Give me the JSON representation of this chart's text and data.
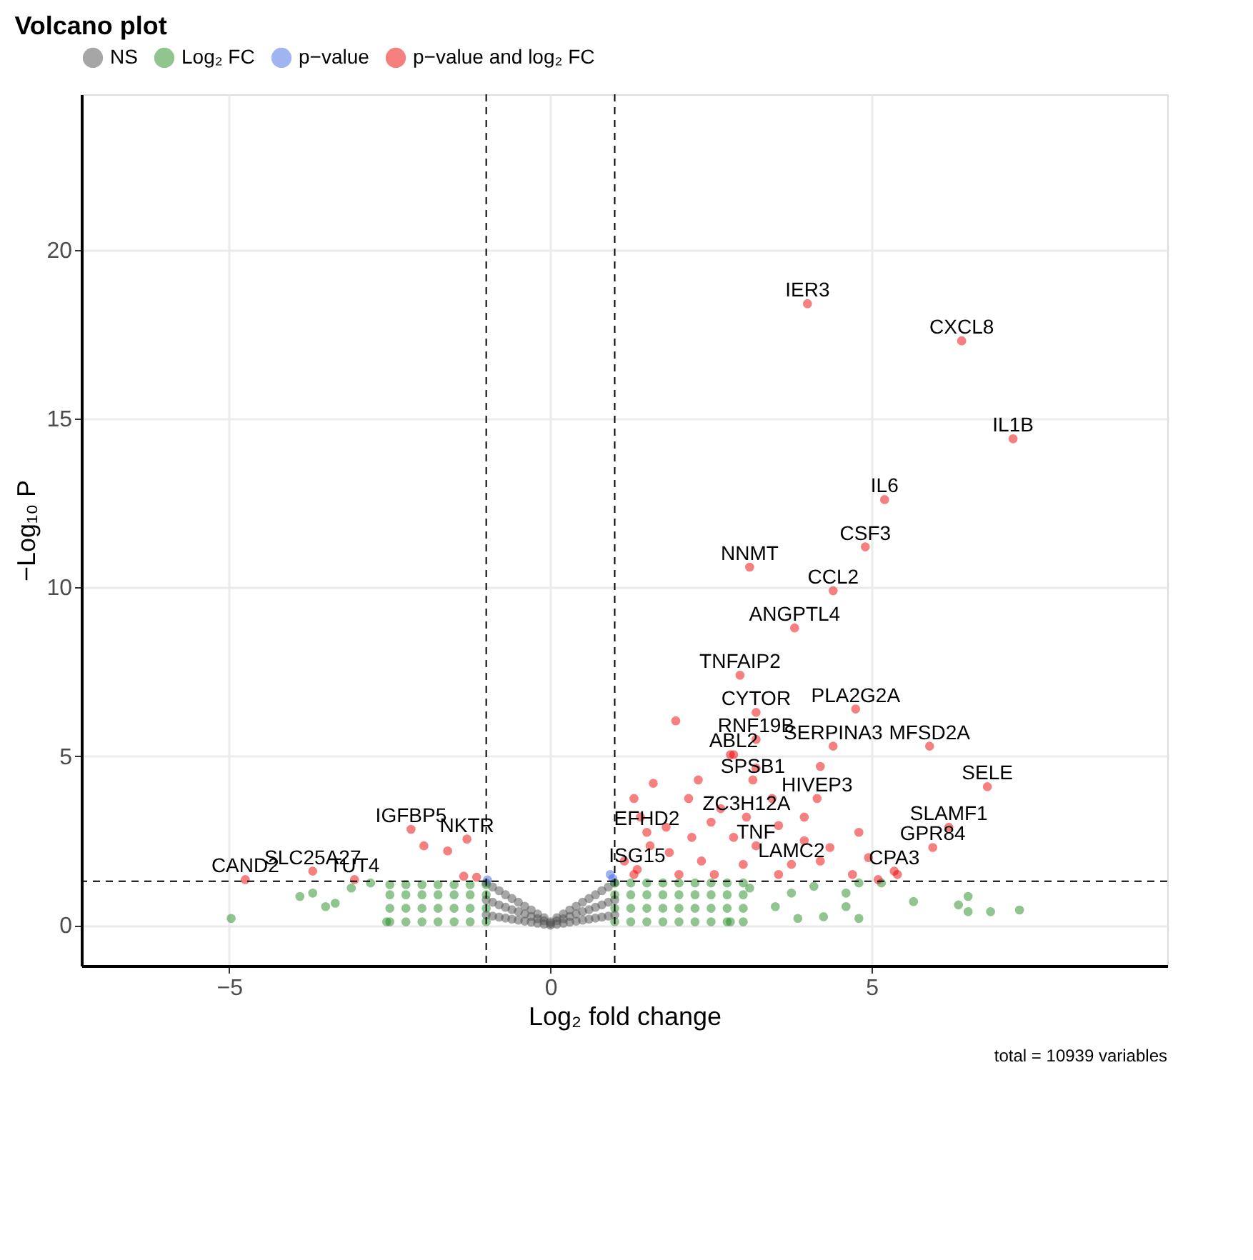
{
  "chart_data": {
    "type": "scatter",
    "title": "Volcano plot",
    "xlabel": "Log₂ fold change",
    "ylabel": "−Log₁₀ P",
    "xlim": [
      -7.3,
      9.6
    ],
    "ylim": [
      -1.2,
      24.6
    ],
    "xticks": [
      -5,
      0,
      5
    ],
    "yticks": [
      0,
      5,
      10,
      15,
      20
    ],
    "grid": true,
    "legend": "top",
    "marker": "circle",
    "series": [
      {
        "name": "NS",
        "color": "#4d4d4d",
        "x": [
          -1.0,
          -0.9,
          -0.8,
          -0.7,
          -0.6,
          -0.5,
          -0.4,
          -0.3,
          -0.2,
          -0.1,
          0.0,
          0.1,
          0.2,
          0.3,
          0.4,
          0.5,
          0.6,
          0.7,
          0.8,
          0.9,
          1.0,
          -1.0,
          -0.9,
          -0.8,
          -0.7,
          -0.6,
          -0.5,
          -0.4,
          -0.3,
          -0.2,
          -0.1,
          0.0,
          0.1,
          0.2,
          0.3,
          0.4,
          0.5,
          0.6,
          0.7,
          0.8,
          0.9,
          1.0,
          -1.0,
          -0.9,
          -0.8,
          -0.7,
          -0.6,
          -0.5,
          -0.4,
          -0.3,
          -0.2,
          -0.1,
          0.0,
          0.1,
          0.2,
          0.3,
          0.4,
          0.5,
          0.6,
          0.7,
          0.8,
          0.9,
          1.0
        ],
        "values": [
          1.25,
          1.13,
          1.02,
          0.9,
          0.79,
          0.68,
          0.56,
          0.45,
          0.33,
          0.22,
          0.1,
          0.22,
          0.33,
          0.45,
          0.56,
          0.68,
          0.79,
          0.9,
          1.02,
          1.13,
          1.25,
          0.75,
          0.68,
          0.6,
          0.53,
          0.46,
          0.4,
          0.33,
          0.26,
          0.19,
          0.13,
          0.05,
          0.13,
          0.19,
          0.26,
          0.33,
          0.4,
          0.46,
          0.53,
          0.6,
          0.68,
          0.75,
          0.3,
          0.27,
          0.24,
          0.21,
          0.18,
          0.15,
          0.12,
          0.09,
          0.06,
          0.03,
          0.0,
          0.03,
          0.06,
          0.09,
          0.12,
          0.15,
          0.18,
          0.21,
          0.24,
          0.27,
          0.3
        ]
      },
      {
        "name": "Log₂ FC",
        "color": "#228b22",
        "x": [
          1.0,
          1.25,
          1.5,
          1.75,
          2.0,
          2.25,
          2.5,
          2.75,
          3.0,
          1.0,
          1.25,
          1.5,
          1.75,
          2.0,
          2.25,
          2.5,
          2.75,
          3.0,
          1.0,
          1.25,
          1.5,
          1.75,
          2.0,
          2.25,
          2.5,
          2.75,
          3.0,
          1.0,
          1.25,
          1.5,
          1.75,
          2.0,
          2.25,
          2.5,
          2.75,
          3.0,
          4.1,
          4.6,
          4.6,
          4.25,
          4.8,
          5.65,
          6.35,
          6.5,
          6.5,
          6.85,
          7.3,
          5.15,
          4.8,
          2.8,
          3.1,
          3.5,
          3.75,
          3.85,
          -4.97,
          -3.9,
          -3.7,
          -3.5,
          -3.35,
          -3.1,
          -2.8,
          -2.55,
          -2.5,
          -2.25,
          -2.0,
          -1.75,
          -1.5,
          -1.25,
          -1.0,
          -2.5,
          -2.25,
          -2.0,
          -1.75,
          -1.5,
          -1.25,
          -1.0,
          -2.5,
          -2.25,
          -2.0,
          -1.75,
          -1.5,
          -1.25,
          -1.0,
          -2.5,
          -2.25,
          -2.0,
          -1.75,
          -1.5,
          -1.25,
          -1.0
        ],
        "values": [
          0.1,
          0.1,
          0.1,
          0.1,
          0.1,
          0.1,
          0.1,
          0.1,
          0.1,
          0.5,
          0.5,
          0.5,
          0.5,
          0.5,
          0.5,
          0.5,
          0.5,
          0.5,
          0.9,
          0.9,
          0.9,
          0.9,
          0.9,
          0.9,
          0.9,
          0.9,
          0.9,
          1.25,
          1.25,
          1.25,
          1.25,
          1.25,
          1.25,
          1.25,
          1.25,
          1.25,
          1.15,
          0.95,
          0.55,
          0.25,
          0.2,
          0.7,
          0.6,
          0.85,
          0.4,
          0.4,
          0.45,
          1.25,
          1.25,
          0.1,
          1.1,
          0.55,
          0.95,
          0.2,
          0.2,
          0.85,
          0.95,
          0.55,
          0.65,
          1.1,
          1.25,
          0.1,
          0.1,
          0.1,
          0.1,
          0.1,
          0.1,
          0.1,
          0.1,
          0.5,
          0.5,
          0.5,
          0.5,
          0.5,
          0.5,
          0.5,
          0.9,
          0.9,
          0.9,
          0.9,
          0.9,
          0.9,
          0.9,
          1.2,
          1.2,
          1.2,
          1.2,
          1.2,
          1.2,
          1.2
        ]
      },
      {
        "name": "p−value",
        "color": "#4169e1",
        "x": [
          -0.98,
          0.93,
          0.97
        ],
        "values": [
          1.34,
          1.5,
          1.38
        ]
      },
      {
        "name": "p−value and log₂ FC",
        "color": "#ee0000",
        "x": [
          4.0,
          6.4,
          7.2,
          5.2,
          4.9,
          3.1,
          4.4,
          3.8,
          2.95,
          3.2,
          4.75,
          3.2,
          4.4,
          5.9,
          2.85,
          6.8,
          3.15,
          4.15,
          3.05,
          6.2,
          5.95,
          1.5,
          3.2,
          5.35,
          1.35,
          3.75,
          -2.17,
          -3.7,
          -4.75,
          -3.05,
          -1.15,
          -1.3,
          -1.97,
          -1.6,
          -1.35,
          1.95,
          2.8,
          3.2,
          1.6,
          1.3,
          2.15,
          3.45,
          4.2,
          3.95,
          3.55,
          4.35,
          4.8,
          4.2,
          5.4,
          5.1,
          1.4,
          1.8,
          2.5,
          2.85,
          1.15,
          1.85,
          2.35,
          3.0,
          1.3,
          2.0,
          2.55,
          3.55,
          1.55,
          2.2,
          2.65,
          2.3,
          4.95,
          4.7,
          3.95
        ],
        "values": [
          18.4,
          17.3,
          14.4,
          12.6,
          11.2,
          10.6,
          9.9,
          8.8,
          7.4,
          6.3,
          6.4,
          5.5,
          5.3,
          5.3,
          5.05,
          4.1,
          4.3,
          3.75,
          3.2,
          2.9,
          2.3,
          2.75,
          2.35,
          1.6,
          1.65,
          1.8,
          2.84,
          1.6,
          1.35,
          1.35,
          1.42,
          2.55,
          2.35,
          2.2,
          1.45,
          6.05,
          5.05,
          4.65,
          4.2,
          3.75,
          3.75,
          3.75,
          4.7,
          3.2,
          2.95,
          2.3,
          2.75,
          1.9,
          1.5,
          1.35,
          3.2,
          2.9,
          3.05,
          2.6,
          1.9,
          2.15,
          1.9,
          1.8,
          1.5,
          1.5,
          1.5,
          1.5,
          2.35,
          2.6,
          3.45,
          4.3,
          2.0,
          1.5,
          2.5
        ]
      }
    ],
    "ref_lines": [
      {
        "axis": "x",
        "value": -1,
        "color": "#000000",
        "line_style": "dashed"
      },
      {
        "axis": "x",
        "value": 1,
        "color": "#000000",
        "line_style": "dashed"
      },
      {
        "axis": "y",
        "value": 1.3,
        "color": "#000000",
        "line_style": "dashed"
      }
    ],
    "annotations": [
      {
        "text": "IER3",
        "x": 4.0,
        "y": 18.4
      },
      {
        "text": "CXCL8",
        "x": 6.4,
        "y": 17.3
      },
      {
        "text": "IL1B",
        "x": 7.2,
        "y": 14.4
      },
      {
        "text": "IL6",
        "x": 5.2,
        "y": 12.6
      },
      {
        "text": "CSF3",
        "x": 4.9,
        "y": 11.2
      },
      {
        "text": "NNMT",
        "x": 3.1,
        "y": 10.6
      },
      {
        "text": "CCL2",
        "x": 4.4,
        "y": 9.9
      },
      {
        "text": "ANGPTL4",
        "x": 3.8,
        "y": 8.8
      },
      {
        "text": "TNFAIP2",
        "x": 2.95,
        "y": 7.4
      },
      {
        "text": "CYTOR",
        "x": 3.2,
        "y": 6.3
      },
      {
        "text": "PLA2G2A",
        "x": 4.75,
        "y": 6.4
      },
      {
        "text": "RNF19B",
        "x": 3.2,
        "y": 5.5
      },
      {
        "text": "SERPINA3",
        "x": 4.4,
        "y": 5.3
      },
      {
        "text": "MFSD2A",
        "x": 5.9,
        "y": 5.3
      },
      {
        "text": "ABL2",
        "x": 2.85,
        "y": 5.05
      },
      {
        "text": "SELE",
        "x": 6.8,
        "y": 4.1
      },
      {
        "text": "SPSB1",
        "x": 3.15,
        "y": 4.3
      },
      {
        "text": "HIVEP3",
        "x": 4.15,
        "y": 3.75
      },
      {
        "text": "ZC3H12A",
        "x": 3.05,
        "y": 3.2
      },
      {
        "text": "SLAMF1",
        "x": 6.2,
        "y": 2.9
      },
      {
        "text": "GPR84",
        "x": 5.95,
        "y": 2.3
      },
      {
        "text": "EFHD2",
        "x": 1.5,
        "y": 2.75
      },
      {
        "text": "TNF",
        "x": 3.2,
        "y": 2.35
      },
      {
        "text": "CPA3",
        "x": 5.35,
        "y": 1.6
      },
      {
        "text": "ISG15",
        "x": 1.35,
        "y": 1.65
      },
      {
        "text": "LAMC2",
        "x": 3.75,
        "y": 1.8
      },
      {
        "text": "IGFBP5",
        "x": -2.17,
        "y": 2.84
      },
      {
        "text": "SLC25A27",
        "x": -3.7,
        "y": 1.6
      },
      {
        "text": "CAND2",
        "x": -4.75,
        "y": 1.35
      },
      {
        "text": "TUT4",
        "x": -3.05,
        "y": 1.35
      },
      {
        "text": "NKTR",
        "x": -1.3,
        "y": 2.55
      },
      "total = 10939 variables"
    ]
  }
}
